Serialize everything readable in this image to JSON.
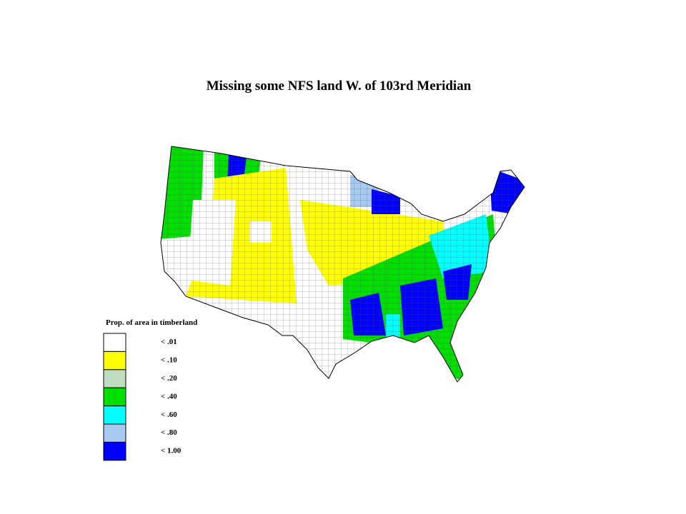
{
  "title": "Missing some NFS land W. of 103rd Meridian",
  "legend": {
    "title": "Prop. of area in timberland",
    "items": [
      {
        "label": "< .01",
        "color": "#ffffff"
      },
      {
        "label": "< .10",
        "color": "#ffff00"
      },
      {
        "label": "< .20",
        "color": "#c0dcc0"
      },
      {
        "label": "< .40",
        "color": "#00e000"
      },
      {
        "label": "< .60",
        "color": "#00ffff"
      },
      {
        "label": "< .80",
        "color": "#a6caf0"
      },
      {
        "label": "< 1.00",
        "color": "#0000ff"
      }
    ]
  }
}
